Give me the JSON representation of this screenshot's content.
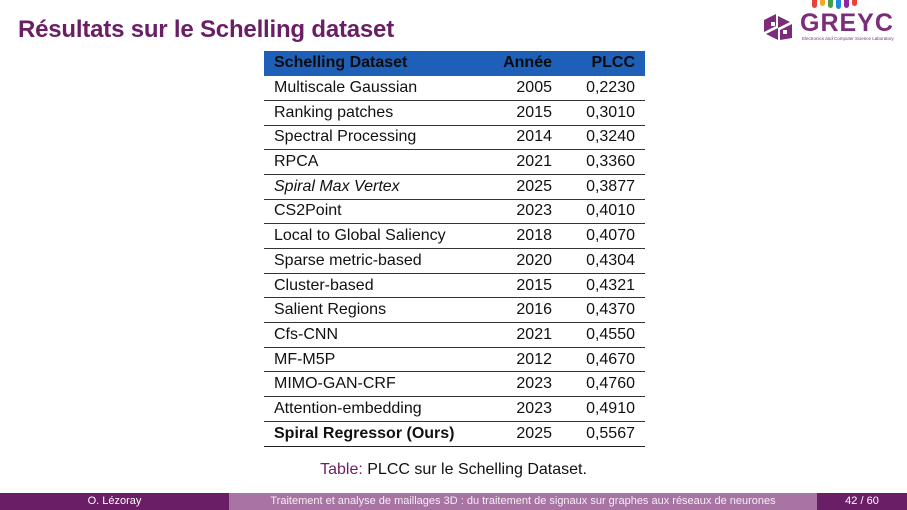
{
  "slide": {
    "title": "Résultats sur le Schelling dataset"
  },
  "logo": {
    "text": "GREYC",
    "subtitle": "Electronics and Computer Science Laboratory",
    "colors": [
      "#7b2c7a",
      "#e8413b",
      "#f5a623",
      "#43a047",
      "#1e88e5",
      "#8e24aa"
    ]
  },
  "table": {
    "headers": [
      "Schelling Dataset",
      "Année",
      "PLCC"
    ],
    "header_color": "#1e5fb8",
    "rows": [
      {
        "method": "Multiscale Gaussian",
        "year": "2005",
        "plcc": "0,2230",
        "style": ""
      },
      {
        "method": "Ranking patches",
        "year": "2015",
        "plcc": "0,3010",
        "style": ""
      },
      {
        "method": "Spectral Processing",
        "year": "2014",
        "plcc": "0,3240",
        "style": ""
      },
      {
        "method": "RPCA",
        "year": "2021",
        "plcc": "0,3360",
        "style": ""
      },
      {
        "method": "Spiral Max Vertex",
        "year": "2025",
        "plcc": "0,3877",
        "style": "italic"
      },
      {
        "method": "CS2Point",
        "year": "2023",
        "plcc": "0,4010",
        "style": ""
      },
      {
        "method": "Local to Global Saliency",
        "year": "2018",
        "plcc": "0,4070",
        "style": ""
      },
      {
        "method": "Sparse metric-based",
        "year": "2020",
        "plcc": "0,4304",
        "style": ""
      },
      {
        "method": "Cluster-based",
        "year": "2015",
        "plcc": "0,4321",
        "style": ""
      },
      {
        "method": "Salient Regions",
        "year": "2016",
        "plcc": "0,4370",
        "style": ""
      },
      {
        "method": "Cfs-CNN",
        "year": "2021",
        "plcc": "0,4550",
        "style": ""
      },
      {
        "method": "MF-M5P",
        "year": "2012",
        "plcc": "0,4670",
        "style": ""
      },
      {
        "method": "MIMO-GAN-CRF",
        "year": "2023",
        "plcc": "0,4760",
        "style": ""
      },
      {
        "method": "Attention-embedding",
        "year": "2023",
        "plcc": "0,4910",
        "style": ""
      },
      {
        "method": "Spiral Regressor (Ours)",
        "year": "2025",
        "plcc": "0,5567",
        "style": "bold"
      }
    ]
  },
  "caption": {
    "label": "Table:",
    "text": "PLCC sur le Schelling Dataset."
  },
  "footer": {
    "author": "O. Lézoray",
    "title": "Traitement et analyse de maillages 3D : du traitement de signaux sur graphes aux réseaux de neurones",
    "page": "42 / 60"
  },
  "colors": {
    "accent": "#6a1e66",
    "footer_mid": "#a874a4"
  }
}
